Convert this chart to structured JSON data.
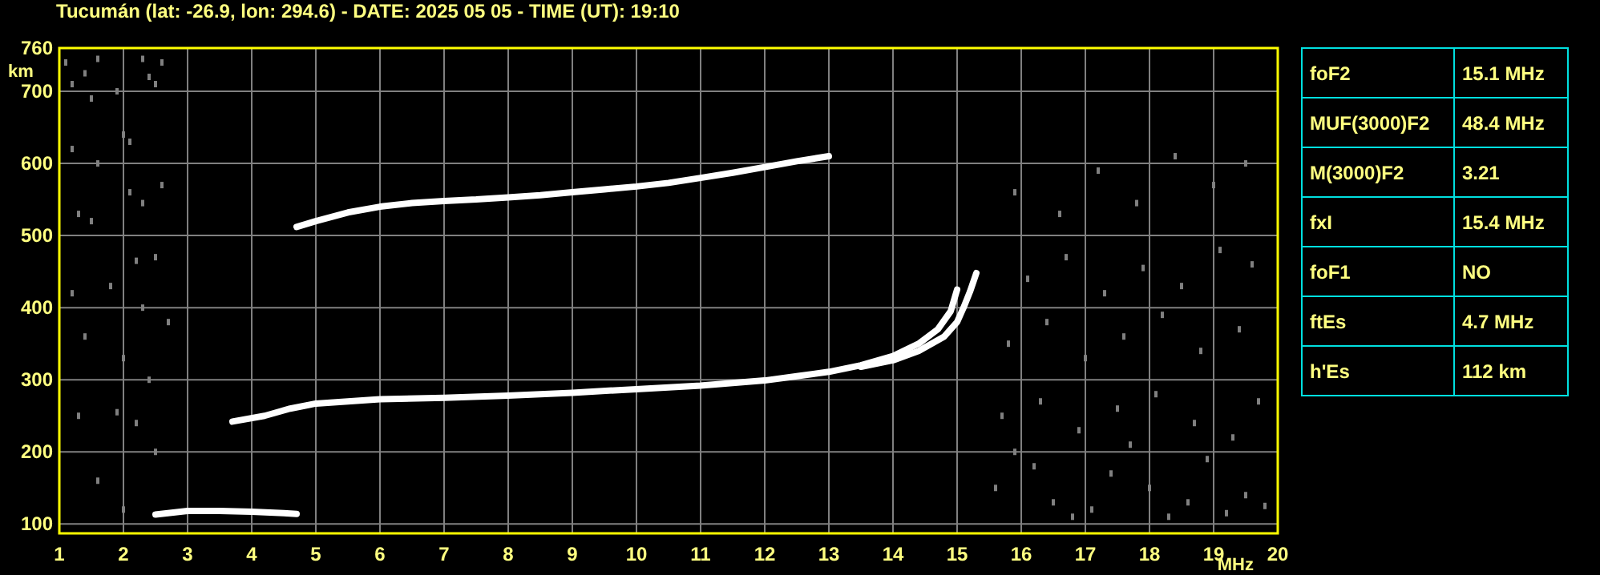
{
  "chart_data": [
    {
      "type": "line",
      "title": "Tucumán (lat: -26.9, lon: 294.6) - DATE: 2025 05 05 - TIME (UT): 19:10",
      "xlabel": "MHz",
      "ylabel": "km",
      "xlim": [
        1,
        20
      ],
      "ylim": [
        87,
        760
      ],
      "xticks": [
        1,
        2,
        3,
        4,
        5,
        6,
        7,
        8,
        9,
        10,
        11,
        12,
        13,
        14,
        15,
        16,
        17,
        18,
        19,
        20
      ],
      "yticks": [
        100,
        200,
        300,
        400,
        500,
        600,
        700,
        760
      ],
      "grid": true,
      "line_style": "solid",
      "series": [
        {
          "color": "#ffffff",
          "x": [
            2.5,
            3.0,
            3.5,
            4.0,
            4.5,
            4.7
          ],
          "values": [
            113,
            118,
            118,
            117,
            115,
            114
          ]
        },
        {
          "color": "#ffffff",
          "x": [
            3.7,
            4.2,
            4.6,
            5.0,
            5.5,
            6.0,
            7.0,
            8.0,
            9.0,
            10.0,
            11.0,
            12.0,
            12.5,
            13.0,
            13.5,
            14.0,
            14.4,
            14.7,
            14.9,
            15.0
          ],
          "values": [
            242,
            250,
            260,
            267,
            270,
            273,
            275,
            278,
            282,
            287,
            292,
            299,
            305,
            311,
            320,
            333,
            350,
            370,
            395,
            425
          ]
        },
        {
          "color": "#ffffff",
          "x": [
            13.5,
            14.0,
            14.4,
            14.8,
            15.0,
            15.1,
            15.2,
            15.3
          ],
          "values": [
            318,
            327,
            340,
            360,
            380,
            400,
            422,
            448
          ]
        },
        {
          "color": "#ffffff",
          "x": [
            4.7,
            5.0,
            5.5,
            6.0,
            6.5,
            7.0,
            7.5,
            8.0,
            8.5,
            9.0,
            9.5,
            10.0,
            10.5,
            11.0,
            11.5,
            12.0,
            12.5,
            13.0
          ],
          "values": [
            512,
            520,
            532,
            540,
            545,
            548,
            550,
            553,
            556,
            560,
            564,
            568,
            573,
            580,
            587,
            595,
            603,
            610
          ]
        },
        {
          "type": "scatter",
          "color": "#808080",
          "marker": "square",
          "x": [
            1.1,
            1.2,
            1.4,
            1.5,
            1.6,
            1.9,
            2.0,
            2.1,
            2.3,
            2.4,
            2.5,
            2.6,
            1.2,
            1.6,
            2.1,
            2.3,
            2.6,
            1.3,
            1.5,
            2.2,
            2.5,
            1.2,
            1.8,
            2.3,
            2.7,
            1.4,
            2.0,
            2.4,
            1.3,
            1.9,
            2.2,
            2.5,
            1.6,
            2.0,
            15.6,
            15.9,
            16.2,
            16.5,
            16.8,
            17.1,
            17.4,
            17.7,
            18.0,
            18.3,
            18.6,
            18.9,
            19.2,
            19.5,
            19.8,
            15.7,
            16.3,
            16.9,
            17.5,
            18.1,
            18.7,
            19.3,
            19.7,
            15.8,
            16.4,
            17.0,
            17.6,
            18.2,
            18.8,
            19.4,
            16.1,
            16.7,
            17.3,
            17.9,
            18.5,
            19.1,
            19.6,
            15.9,
            16.6,
            17.2,
            17.8,
            18.4,
            19.0,
            19.5
          ],
          "values": [
            740,
            710,
            725,
            690,
            745,
            700,
            640,
            630,
            745,
            720,
            710,
            740,
            620,
            600,
            560,
            545,
            570,
            530,
            520,
            465,
            470,
            420,
            430,
            400,
            380,
            360,
            330,
            300,
            250,
            255,
            240,
            200,
            160,
            120,
            150,
            200,
            180,
            130,
            110,
            120,
            170,
            210,
            150,
            110,
            130,
            190,
            115,
            140,
            125,
            250,
            270,
            230,
            260,
            280,
            240,
            220,
            270,
            350,
            380,
            330,
            360,
            390,
            340,
            370,
            440,
            470,
            420,
            455,
            430,
            480,
            460,
            560,
            530,
            590,
            545,
            610,
            570,
            600
          ]
        }
      ]
    },
    {
      "type": "other",
      "annotations": [
        "foF2",
        "15.1 MHz",
        "MUF(3000)F2",
        "48.4 MHz",
        "M(3000)F2",
        "3.21",
        "fxI",
        "15.4 MHz",
        "foF1",
        "NO",
        "ftEs",
        "4.7 MHz",
        "h'Es",
        "112 km"
      ]
    }
  ]
}
